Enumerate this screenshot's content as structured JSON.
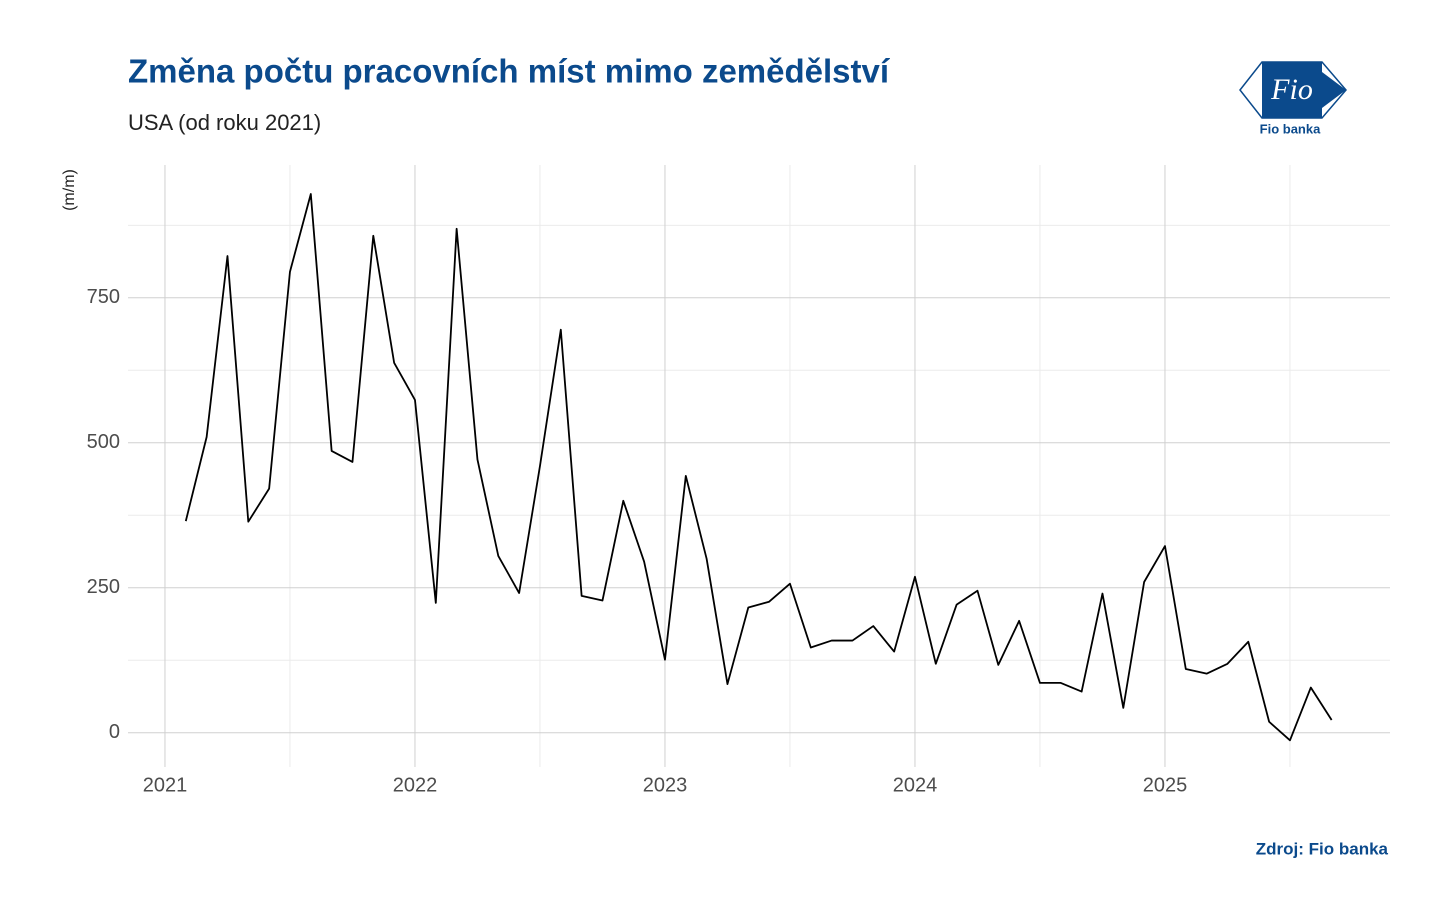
{
  "chart_data": {
    "type": "line",
    "title": "Změna počtu pracovních míst mimo zemědělství",
    "subtitle": "USA (od roku 2021)",
    "y_label": "(m/m)",
    "source": "Zdroj: Fio banka",
    "logo": {
      "mark": "Fio",
      "name": "Fio banka"
    },
    "x": [
      "2021-02",
      "2021-03",
      "2021-04",
      "2021-05",
      "2021-06",
      "2021-07",
      "2021-08",
      "2021-09",
      "2021-10",
      "2021-11",
      "2021-12",
      "2022-01",
      "2022-02",
      "2022-03",
      "2022-04",
      "2022-05",
      "2022-06",
      "2022-07",
      "2022-08",
      "2022-09",
      "2022-10",
      "2022-11",
      "2022-12",
      "2023-01",
      "2023-02",
      "2023-03",
      "2023-04",
      "2023-05",
      "2023-06",
      "2023-07",
      "2023-08",
      "2023-09",
      "2023-10",
      "2023-11",
      "2023-12",
      "2024-01",
      "2024-02",
      "2024-03",
      "2024-04",
      "2024-05",
      "2024-06",
      "2024-07",
      "2024-08",
      "2024-09",
      "2024-10",
      "2024-11",
      "2024-12",
      "2025-01",
      "2025-02",
      "2025-03",
      "2025-04",
      "2025-05",
      "2025-06",
      "2025-07",
      "2025-08",
      "2025-09"
    ],
    "series": [
      {
        "color": "#000000",
        "values": [
          365,
          510,
          822,
          364,
          421,
          795,
          929,
          486,
          467,
          857,
          638,
          574,
          224,
          869,
          471,
          305,
          241,
          460,
          695,
          236,
          228,
          400,
          295,
          126,
          443,
          300,
          84,
          216,
          226,
          257,
          147,
          159,
          159,
          184,
          140,
          269,
          119,
          221,
          245,
          117,
          193,
          86,
          86,
          71,
          240,
          43,
          260,
          322,
          110,
          102,
          119,
          157,
          19,
          -13,
          78,
          22
        ]
      }
    ],
    "xlim": [
      "2020-11",
      "2025-11"
    ],
    "xticks": [
      {
        "value": "2021-01",
        "label": "2021"
      },
      {
        "value": "2022-01",
        "label": "2022"
      },
      {
        "value": "2023-01",
        "label": "2023"
      },
      {
        "value": "2024-01",
        "label": "2024"
      },
      {
        "value": "2025-01",
        "label": "2025"
      }
    ],
    "ylim": [
      -59,
      979
    ],
    "yticks": [
      0,
      250,
      500,
      750
    ],
    "grid": true
  }
}
